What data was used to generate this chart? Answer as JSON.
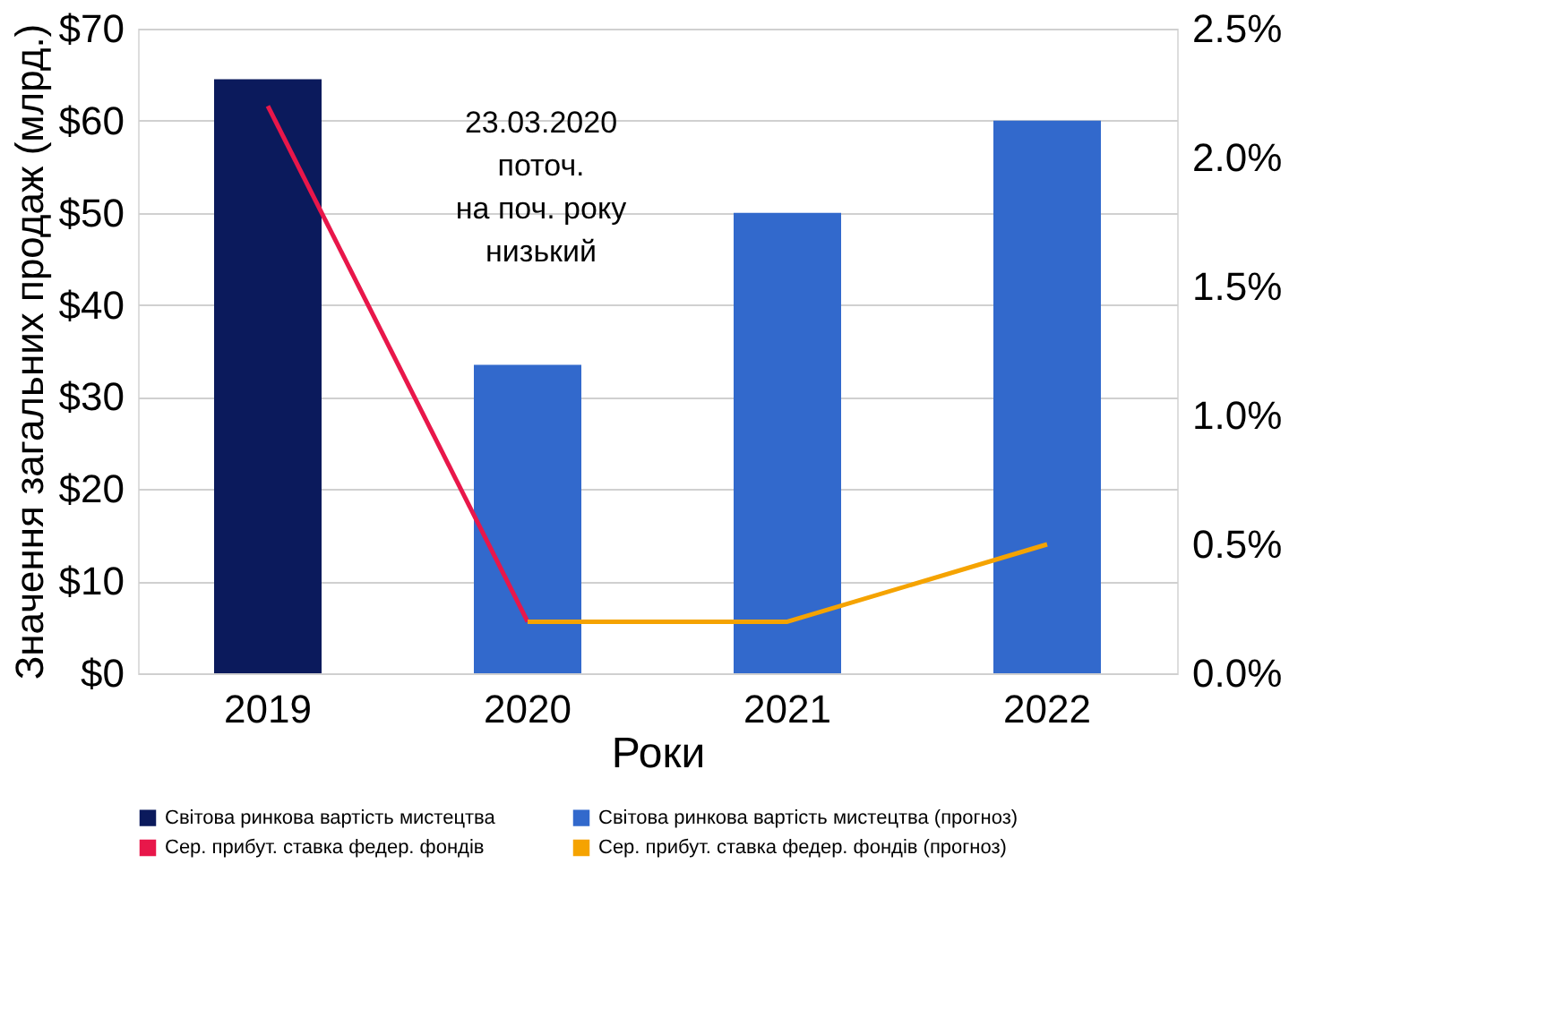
{
  "chart_data": {
    "type": "bar",
    "xlabel": "Роки",
    "ylabel": "Значення загальних продаж (млрд.)",
    "categories": [
      "2019",
      "2020",
      "2021",
      "2022"
    ],
    "series": [
      {
        "name": "Світова ринкова вартість мистецтва",
        "color": "#0b1a5c",
        "values": [
          64.5,
          null,
          null,
          null
        ]
      },
      {
        "name": "Світова ринкова вартість мистецтва (прогноз)",
        "color": "#3269cc",
        "values": [
          null,
          33.5,
          50,
          60
        ]
      },
      {
        "name": "Сер. прибут. ставка федер. фондів",
        "type": "line",
        "axis": "y2",
        "color": "#e8174a",
        "values": [
          2.2,
          0.2,
          null,
          null
        ]
      },
      {
        "name": "Сер. прибут. ставка федер. фондів (прогноз)",
        "type": "line",
        "axis": "y2",
        "color": "#f5a300",
        "values": [
          null,
          0.2,
          0.2,
          0.5
        ]
      }
    ],
    "ylim": [
      0,
      70
    ],
    "yticks": [
      {
        "value": 0,
        "label": "$0"
      },
      {
        "value": 10,
        "label": "$10"
      },
      {
        "value": 20,
        "label": "$20"
      },
      {
        "value": 30,
        "label": "$30"
      },
      {
        "value": 40,
        "label": "$40"
      },
      {
        "value": 50,
        "label": "$50"
      },
      {
        "value": 60,
        "label": "$60"
      },
      {
        "value": 70,
        "label": "$70"
      }
    ],
    "y2lim": [
      0,
      2.5
    ],
    "y2ticks": [
      {
        "value": 0,
        "label": "0.0%"
      },
      {
        "value": 0.5,
        "label": "0.5%"
      },
      {
        "value": 1,
        "label": "1.0%"
      },
      {
        "value": 1.5,
        "label": "1.5%"
      },
      {
        "value": 2,
        "label": "2.0%"
      },
      {
        "value": 2.5,
        "label": "2.5%"
      }
    ],
    "annotations": [
      "23.03.2020\nпоточ.\nна поч. року\nнизький"
    ],
    "grid": "y",
    "legend": "bottom",
    "line_style": "solid",
    "marker": "none"
  }
}
